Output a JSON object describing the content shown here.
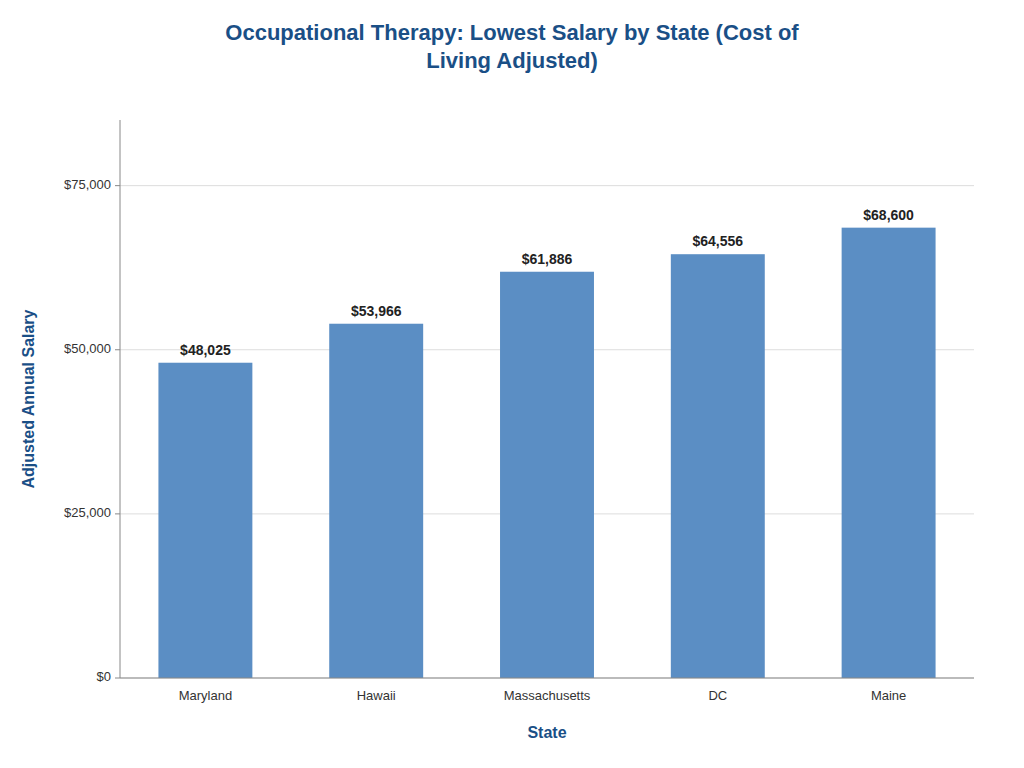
{
  "chart_data": {
    "type": "bar",
    "title": "Occupational Therapy: Lowest Salary by State (Cost of\nLiving Adjusted)",
    "xlabel": "State",
    "ylabel": "Adjusted Annual Salary",
    "categories": [
      "Maryland",
      "Hawaii",
      "Massachusetts",
      "DC",
      "Maine"
    ],
    "values": [
      48025,
      53966,
      61886,
      64556,
      68600
    ],
    "value_labels": [
      "$48,025",
      "$53,966",
      "$61,886",
      "$64,556",
      "$68,600"
    ],
    "color": "#5b8ec4",
    "ylim": [
      0,
      85000
    ],
    "yticks": [
      {
        "value": 0,
        "label": "$0"
      },
      {
        "value": 25000,
        "label": "$25,000"
      },
      {
        "value": 50000,
        "label": "$50,000"
      },
      {
        "value": 75000,
        "label": "$75,000"
      }
    ],
    "grid": true,
    "data_labels": true
  }
}
